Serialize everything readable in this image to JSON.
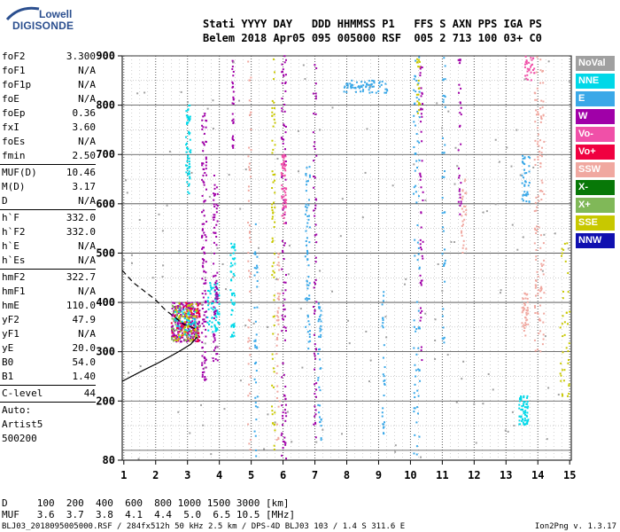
{
  "logo": {
    "line1": "Lowell",
    "line2": "DIGISONDE"
  },
  "header": {
    "labels": "Stati YYYY DAY   DDD HHMMSS P1   FFS S AXN PPS IGA PS",
    "values": "Belem 2018 Apr05 095 005000 RSF  005 2 713 100 03+ C0"
  },
  "parameters": [
    {
      "name": "foF2",
      "value": "3.300"
    },
    {
      "name": "foF1",
      "value": "N/A"
    },
    {
      "name": "foF1p",
      "value": "N/A"
    },
    {
      "name": "foE",
      "value": "N/A"
    },
    {
      "name": "foEp",
      "value": "0.36"
    },
    {
      "name": "fxI",
      "value": "3.60"
    },
    {
      "name": "foEs",
      "value": "N/A"
    },
    {
      "name": "fmin",
      "value": "2.50"
    },
    {
      "sep": true
    },
    {
      "name": "MUF(D)",
      "value": "10.46"
    },
    {
      "name": "M(D)",
      "value": "3.17"
    },
    {
      "name": "D",
      "value": "N/A"
    },
    {
      "sep": true
    },
    {
      "name": "h`F",
      "value": "332.0"
    },
    {
      "name": "h`F2",
      "value": "332.0"
    },
    {
      "name": "h`E",
      "value": "N/A"
    },
    {
      "name": "h`Es",
      "value": "N/A"
    },
    {
      "sep": true
    },
    {
      "name": "hmF2",
      "value": "322.7"
    },
    {
      "name": "hmF1",
      "value": "N/A"
    },
    {
      "name": "hmE",
      "value": "110.0"
    },
    {
      "name": "yF2",
      "value": "47.9"
    },
    {
      "name": "yF1",
      "value": "N/A"
    },
    {
      "name": "yE",
      "value": "20.0"
    },
    {
      "name": "B0",
      "value": "54.0"
    },
    {
      "name": "B1",
      "value": "1.40"
    },
    {
      "sep": true
    },
    {
      "name": "C-level",
      "value": "44"
    },
    {
      "sep": true
    }
  ],
  "autoscaling": [
    "Auto:",
    "Artist5",
    "500200"
  ],
  "legend": [
    {
      "label": "NoVal",
      "color": "#a0a0a0"
    },
    {
      "label": "NNE",
      "color": "#00d8e8"
    },
    {
      "label": "E",
      "color": "#3aa8e8"
    },
    {
      "label": "W",
      "color": "#a000a8"
    },
    {
      "label": "Vo-",
      "color": "#f050a8"
    },
    {
      "label": "Vo+",
      "color": "#f00040"
    },
    {
      "label": "SSW",
      "color": "#f0a8a0"
    },
    {
      "label": "X-",
      "color": "#087808"
    },
    {
      "label": "X+",
      "color": "#80b858"
    },
    {
      "label": "SSE",
      "color": "#c8c800"
    },
    {
      "label": "NNW",
      "color": "#1010b0"
    }
  ],
  "footer": {
    "d_row": "D     100  200  400  600  800 1000 1500 3000 [km]",
    "muf_row": "MUF   3.6  3.7  3.8  4.1  4.4  5.0  6.5 10.5 [MHz]",
    "file_info": "BLJ03_2018095005000.RSF / 284fx512h 50 kHz 2.5 km / DPS-4D BLJ03 103 / 1.4 S 311.6 E",
    "version": "Ion2Png v. 1.3.17"
  },
  "chart_data": {
    "type": "scatter",
    "xlabel": "",
    "ylabel": "",
    "xlim": [
      0.95,
      15.05
    ],
    "ylim": [
      80,
      900
    ],
    "x_ticks": [
      1,
      2,
      3,
      4,
      5,
      6,
      7,
      8,
      9,
      10,
      11,
      12,
      13,
      14,
      15
    ],
    "y_ticks": [
      80,
      200,
      300,
      400,
      500,
      600,
      700,
      800,
      900
    ],
    "grid": true,
    "clusters": [
      {
        "series": "NNE",
        "x": [
          2.95,
          3.1
        ],
        "y": [
          620,
          800
        ],
        "n": 60
      },
      {
        "series": "W",
        "x": [
          2.5,
          3.4
        ],
        "y": [
          320,
          400
        ],
        "n": 220
      },
      {
        "series": "Vo+",
        "x": [
          2.5,
          3.4
        ],
        "y": [
          320,
          400
        ],
        "n": 80
      },
      {
        "series": "X+",
        "x": [
          2.5,
          3.4
        ],
        "y": [
          320,
          400
        ],
        "n": 60
      },
      {
        "series": "SSE",
        "x": [
          2.6,
          3.3
        ],
        "y": [
          320,
          400
        ],
        "n": 60
      },
      {
        "series": "NNE",
        "x": [
          2.6,
          3.3
        ],
        "y": [
          330,
          390
        ],
        "n": 40
      },
      {
        "series": "W",
        "x": [
          3.45,
          3.6
        ],
        "y": [
          240,
          800
        ],
        "n": 120
      },
      {
        "series": "NNE",
        "x": [
          3.6,
          4.0
        ],
        "y": [
          340,
          440
        ],
        "n": 70
      },
      {
        "series": "W",
        "x": [
          3.8,
          3.95
        ],
        "y": [
          280,
          670
        ],
        "n": 80
      },
      {
        "series": "NNE",
        "x": [
          4.35,
          4.5
        ],
        "y": [
          330,
          520
        ],
        "n": 50
      },
      {
        "series": "W",
        "x": [
          4.4,
          4.45
        ],
        "y": [
          710,
          900
        ],
        "n": 30
      },
      {
        "series": "SSW",
        "x": [
          4.9,
          5.0
        ],
        "y": [
          80,
          900
        ],
        "n": 50
      },
      {
        "series": "E",
        "x": [
          5.1,
          5.2
        ],
        "y": [
          80,
          560
        ],
        "n": 40
      },
      {
        "series": "SSE",
        "x": [
          5.65,
          5.75
        ],
        "y": [
          80,
          900
        ],
        "n": 70
      },
      {
        "series": "SSW",
        "x": [
          5.8,
          5.9
        ],
        "y": [
          120,
          500
        ],
        "n": 40
      },
      {
        "series": "W",
        "x": [
          5.95,
          6.1
        ],
        "y": [
          80,
          900
        ],
        "n": 100
      },
      {
        "series": "Vo-",
        "x": [
          5.95,
          6.1
        ],
        "y": [
          560,
          700
        ],
        "n": 60
      },
      {
        "series": "W",
        "x": [
          6.95,
          7.05
        ],
        "y": [
          80,
          900
        ],
        "n": 60
      },
      {
        "series": "E",
        "x": [
          6.7,
          6.85
        ],
        "y": [
          300,
          690
        ],
        "n": 60
      },
      {
        "series": "E",
        "x": [
          7.1,
          7.2
        ],
        "y": [
          120,
          400
        ],
        "n": 40
      },
      {
        "series": "E",
        "x": [
          7.9,
          9.3
        ],
        "y": [
          825,
          850
        ],
        "n": 70
      },
      {
        "series": "E",
        "x": [
          9.1,
          9.2
        ],
        "y": [
          130,
          430
        ],
        "n": 30
      },
      {
        "series": "E",
        "x": [
          10.1,
          10.3
        ],
        "y": [
          80,
          900
        ],
        "n": 80
      },
      {
        "series": "W",
        "x": [
          10.3,
          10.4
        ],
        "y": [
          280,
          900
        ],
        "n": 50
      },
      {
        "series": "SSE",
        "x": [
          10.2,
          10.3
        ],
        "y": [
          780,
          900
        ],
        "n": 20
      },
      {
        "series": "E",
        "x": [
          11.0,
          11.1
        ],
        "y": [
          300,
          900
        ],
        "n": 40
      },
      {
        "series": "W",
        "x": [
          11.5,
          11.6
        ],
        "y": [
          560,
          900
        ],
        "n": 30
      },
      {
        "series": "SSW",
        "x": [
          11.6,
          11.75
        ],
        "y": [
          500,
          650
        ],
        "n": 30
      },
      {
        "series": "NNE",
        "x": [
          13.4,
          13.7
        ],
        "y": [
          150,
          210
        ],
        "n": 60
      },
      {
        "series": "SSW",
        "x": [
          13.5,
          13.7
        ],
        "y": [
          330,
          420
        ],
        "n": 40
      },
      {
        "series": "E",
        "x": [
          13.5,
          13.75
        ],
        "y": [
          600,
          700
        ],
        "n": 40
      },
      {
        "series": "SSW",
        "x": [
          13.9,
          14.2
        ],
        "y": [
          300,
          900
        ],
        "n": 120
      },
      {
        "series": "Vo-",
        "x": [
          13.6,
          13.9
        ],
        "y": [
          850,
          900
        ],
        "n": 30
      },
      {
        "series": "SSE",
        "x": [
          14.7,
          15.0
        ],
        "y": [
          200,
          520
        ],
        "n": 40
      },
      {
        "series": "NoVal",
        "x": [
          1.0,
          15.0
        ],
        "y": [
          80,
          900
        ],
        "n": 150
      }
    ],
    "profile_solid": [
      [
        0.95,
        240
      ],
      [
        1.6,
        262
      ],
      [
        2.1,
        278
      ],
      [
        2.5,
        292
      ],
      [
        2.8,
        303
      ],
      [
        3.1,
        315
      ],
      [
        3.3,
        330
      ]
    ],
    "profile_dashed": [
      [
        0.95,
        465
      ],
      [
        1.3,
        440
      ],
      [
        1.7,
        420
      ],
      [
        2.0,
        405
      ],
      [
        2.3,
        385
      ],
      [
        2.6,
        370
      ],
      [
        2.9,
        355
      ],
      [
        3.3,
        345
      ]
    ]
  }
}
